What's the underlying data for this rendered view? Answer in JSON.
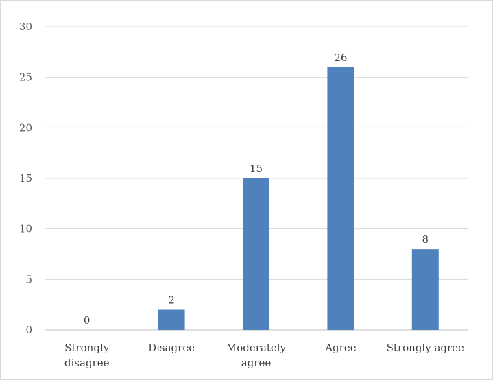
{
  "chart_data": {
    "type": "bar",
    "title": "",
    "xlabel": "",
    "ylabel": "",
    "categories": [
      [
        "Strongly",
        "disagree"
      ],
      [
        "Disagree"
      ],
      [
        "Moderately",
        "agree"
      ],
      [
        "Agree"
      ],
      [
        "Strongly agree"
      ]
    ],
    "values": [
      0,
      2,
      15,
      26,
      8
    ],
    "ylim": [
      0,
      30
    ],
    "yticks": [
      0,
      5,
      10,
      15,
      20,
      25,
      30
    ],
    "grid": true,
    "legend": "none",
    "data_labels": true,
    "colors": {
      "bar": "#4f81bd",
      "grid": "#d9d9d9",
      "axis": "#bfbfbf"
    }
  }
}
